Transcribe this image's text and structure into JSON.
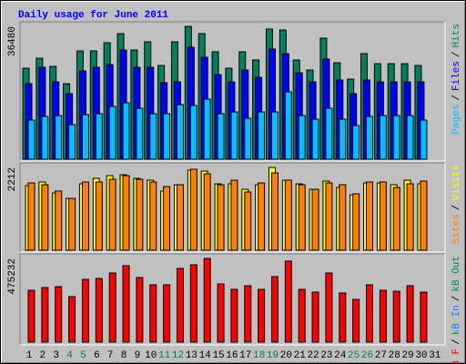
{
  "chart_data": [
    {
      "type": "bar",
      "title": "Daily usage for June 2011",
      "title_color": "#0000ff",
      "ylim": [
        0,
        36480
      ],
      "yticks": [
        36480
      ],
      "legend_separator": "/",
      "series": [
        {
          "name": "Pages",
          "color": "#00c0ff",
          "values": [
            10750,
            11750,
            12000,
            9500,
            12250,
            12500,
            14500,
            15500,
            14000,
            12500,
            12500,
            15000,
            14750,
            16500,
            12500,
            13000,
            11250,
            13000,
            13000,
            18500,
            12000,
            11000,
            14000,
            11000,
            9250,
            11750,
            12000,
            12000,
            12000,
            10750,
            null
          ]
        },
        {
          "name": "Files",
          "color": "#0000ff",
          "values": [
            20740,
            25240,
            21240,
            17990,
            24240,
            25240,
            25990,
            29990,
            25240,
            25240,
            20990,
            21240,
            30740,
            27990,
            23240,
            21240,
            24490,
            22490,
            30240,
            28990,
            23740,
            21240,
            27490,
            21740,
            17990,
            21740,
            21240,
            21240,
            21240,
            21240,
            null
          ]
        },
        {
          "name": "Hits",
          "color": "#00805c",
          "values": [
            24990,
            27740,
            25490,
            20740,
            29740,
            29740,
            31990,
            34490,
            29990,
            32240,
            25740,
            32240,
            36480,
            34490,
            29490,
            24990,
            29490,
            27240,
            35740,
            35490,
            27240,
            24490,
            33240,
            26490,
            21990,
            28990,
            26240,
            26240,
            26240,
            25740,
            null
          ]
        }
      ]
    },
    {
      "type": "bar",
      "ylim": [
        0,
        2212
      ],
      "yticks": [
        2212
      ],
      "legend_separator": "/",
      "series": [
        {
          "name": "Sites",
          "color": "#ff8000",
          "values": [
            1798,
            1750,
            1580,
            1385,
            1823,
            1823,
            1895,
            1993,
            1895,
            1823,
            1701,
            1750,
            2163,
            2041,
            1750,
            1871,
            1555,
            1798,
            2066,
            1871,
            1750,
            1628,
            1798,
            1750,
            1507,
            1823,
            1823,
            1677,
            1774,
            1847,
            null
          ]
        },
        {
          "name": "Visits",
          "color": "#ffff00",
          "values": [
            1725,
            1823,
            1531,
            1385,
            1774,
            1920,
            1993,
            2017,
            1920,
            1871,
            1580,
            1750,
            2139,
            2114,
            1774,
            1774,
            1628,
            1750,
            2212,
            1871,
            1774,
            1628,
            1847,
            1677,
            1482,
            1798,
            1798,
            1750,
            1871,
            1774,
            null
          ]
        }
      ]
    },
    {
      "type": "bar",
      "ylim": [
        0,
        475232
      ],
      "yticks": [
        475232
      ],
      "legend_separator": "/",
      "categories": [
        "1",
        "2",
        "3",
        "4",
        "5",
        "6",
        "7",
        "8",
        "9",
        "10",
        "11",
        "12",
        "13",
        "14",
        "15",
        "16",
        "17",
        "18",
        "19",
        "20",
        "21",
        "22",
        "23",
        "24",
        "25",
        "26",
        "27",
        "28",
        "29",
        "30",
        "31"
      ],
      "category_colors": [
        "#000000",
        "#000000",
        "#000000",
        "#00805c",
        "#00805c",
        "#000000",
        "#000000",
        "#000000",
        "#000000",
        "#000000",
        "#00805c",
        "#00805c",
        "#000000",
        "#000000",
        "#000000",
        "#000000",
        "#000000",
        "#00805c",
        "#00805c",
        "#000000",
        "#000000",
        "#000000",
        "#000000",
        "#000000",
        "#00805c",
        "#00805c",
        "#000000",
        "#000000",
        "#000000",
        "#000000",
        "#000000"
      ],
      "series": [
        {
          "name": "kB F",
          "color": "#ff0000",
          "values": [
            294462,
            309960,
            315126,
            258300,
            356454,
            361620,
            392616,
            433944,
            366786,
            325458,
            325458,
            418446,
            439110,
            475232,
            330624,
            299628,
            320292,
            299628,
            371952,
            459774,
            299628,
            284130,
            392616,
            278964,
            242802,
            325458,
            294462,
            289296,
            320292,
            284130,
            null
          ]
        },
        {
          "name": "kB In",
          "color": "#0080ff",
          "values": [
            0,
            0,
            0,
            0,
            0,
            0,
            0,
            0,
            0,
            0,
            0,
            0,
            0,
            0,
            0,
            0,
            0,
            0,
            0,
            0,
            0,
            0,
            0,
            0,
            0,
            0,
            0,
            0,
            0,
            0,
            null
          ]
        },
        {
          "name": "kB Out",
          "color": "#00805c",
          "values": [
            0,
            0,
            0,
            0,
            0,
            0,
            0,
            0,
            0,
            0,
            0,
            0,
            0,
            0,
            0,
            0,
            0,
            0,
            0,
            0,
            0,
            0,
            0,
            0,
            0,
            0,
            0,
            0,
            0,
            0,
            null
          ]
        }
      ]
    }
  ]
}
